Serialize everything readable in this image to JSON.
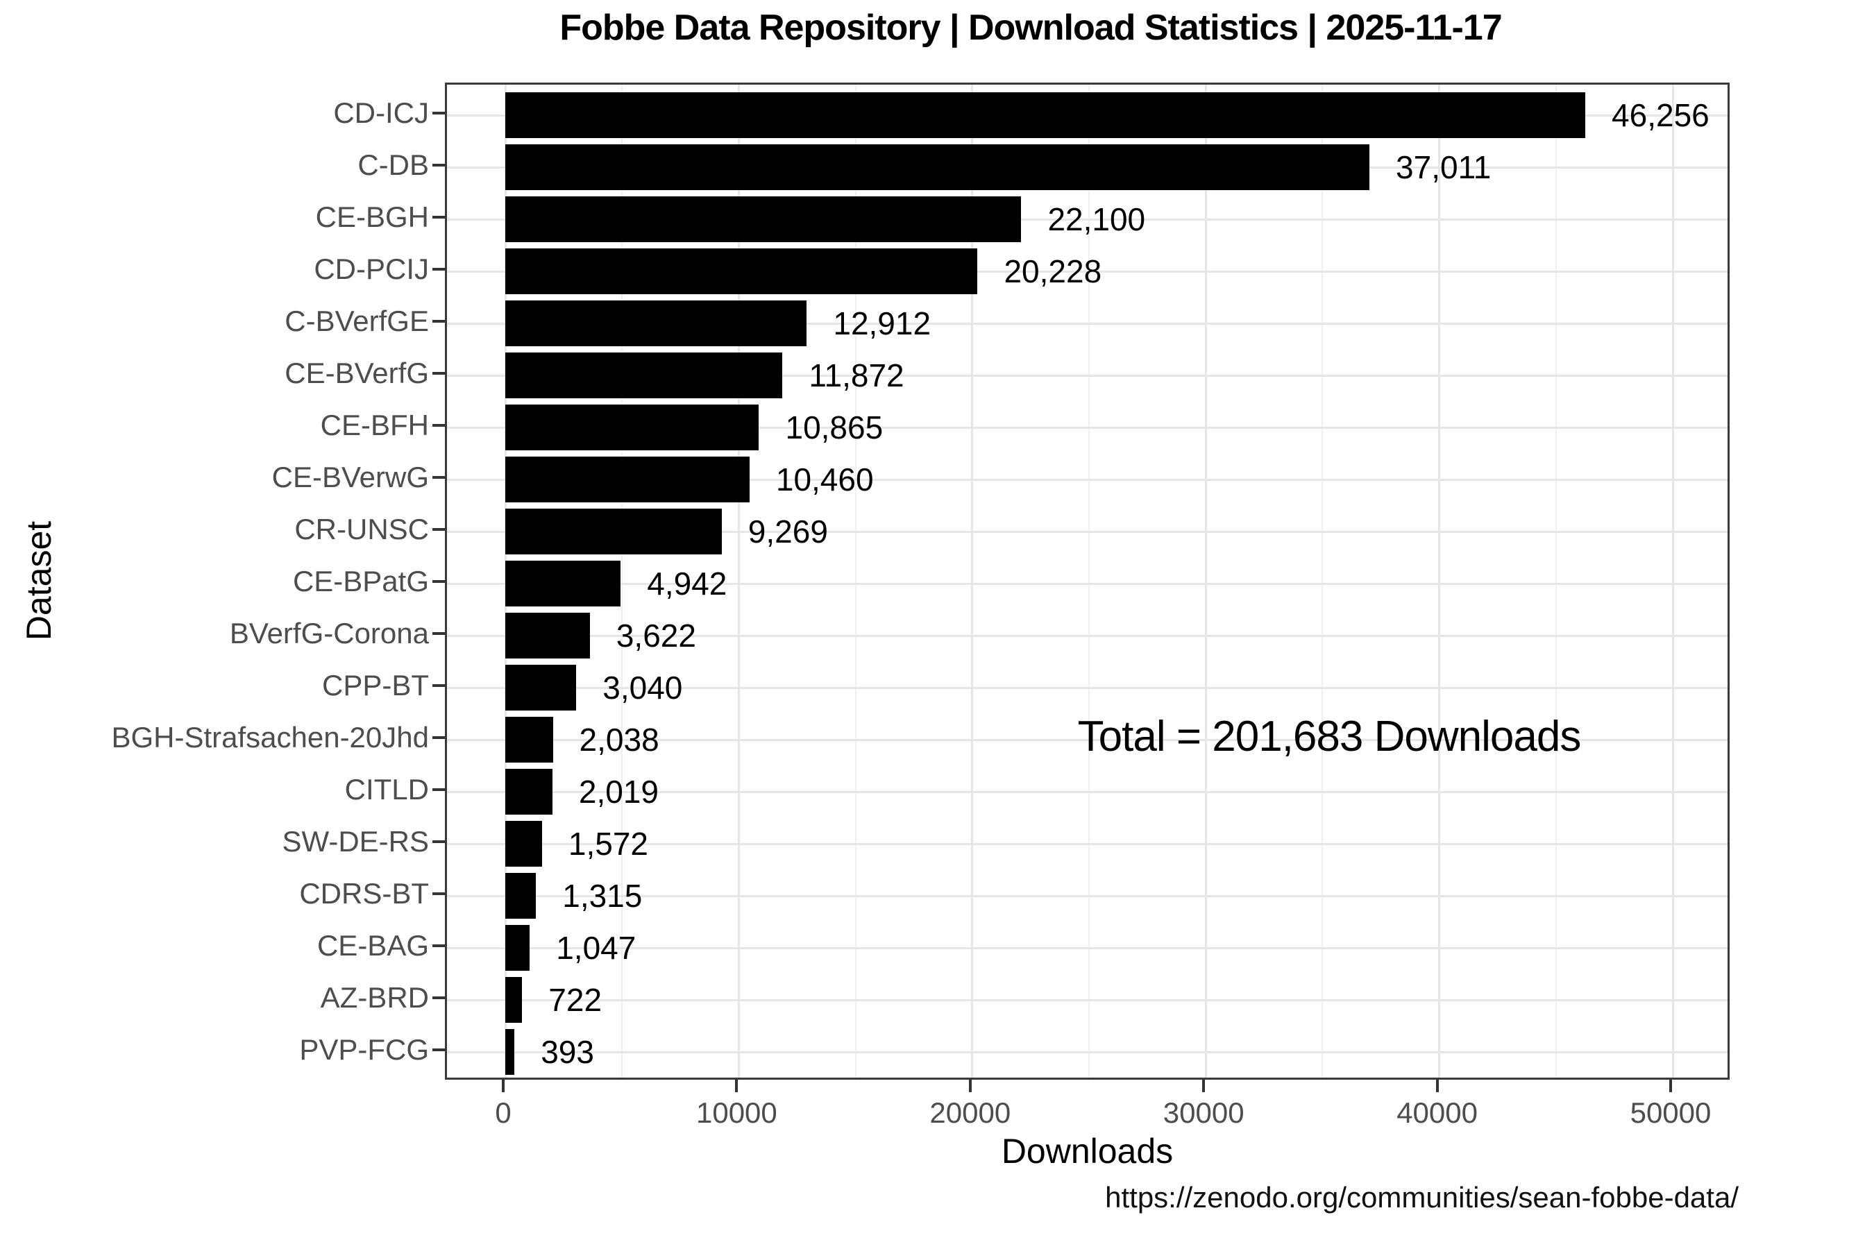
{
  "title": "Fobbe Data Repository | Download Statistics | 2025-11-17",
  "chart_data": {
    "type": "bar",
    "orientation": "horizontal",
    "categories": [
      "CD-ICJ",
      "C-DB",
      "CE-BGH",
      "CD-PCIJ",
      "C-BVerfGE",
      "CE-BVerfG",
      "CE-BFH",
      "CE-BVerwG",
      "CR-UNSC",
      "CE-BPatG",
      "BVerfG-Corona",
      "CPP-BT",
      "BGH-Strafsachen-20Jhd",
      "CITLD",
      "SW-DE-RS",
      "CDRS-BT",
      "CE-BAG",
      "AZ-BRD",
      "PVP-FCG"
    ],
    "values": [
      46256,
      37011,
      22100,
      20228,
      12912,
      11872,
      10865,
      10460,
      9269,
      4942,
      3622,
      3040,
      2038,
      2019,
      1572,
      1315,
      1047,
      722,
      393
    ],
    "value_labels": [
      "46,256",
      "37,011",
      "22,100",
      "20,228",
      "12,912",
      "11,872",
      "10,865",
      "10,460",
      "9,269",
      "4,942",
      "3,622",
      "3,040",
      "2,038",
      "2,019",
      "1,572",
      "1,315",
      "1,047",
      "722",
      "393"
    ],
    "title": "Fobbe Data Repository | Download Statistics | 2025-11-17",
    "xlabel": "Downloads",
    "ylabel": "Dataset",
    "xlim": [
      0,
      50000
    ],
    "x_major_ticks": [
      0,
      10000,
      20000,
      30000,
      40000,
      50000
    ],
    "x_minor_ticks": [
      5000,
      15000,
      25000,
      35000,
      45000
    ],
    "grid": "light gray vertical major+minor, horizontal major at category centers",
    "legend_position": "none",
    "annotation": "Total = 201,683 Downloads",
    "caption": "https://zenodo.org/communities/sean-fobbe-data/",
    "colors": {
      "bar": "#000000",
      "axis_text": "#4d4d4d",
      "axis_title": "#000000",
      "grid_major": "#e6e6e6",
      "grid_minor": "#f0f0f0",
      "panel_border": "#3a3a3a",
      "background": "#ffffff"
    }
  }
}
